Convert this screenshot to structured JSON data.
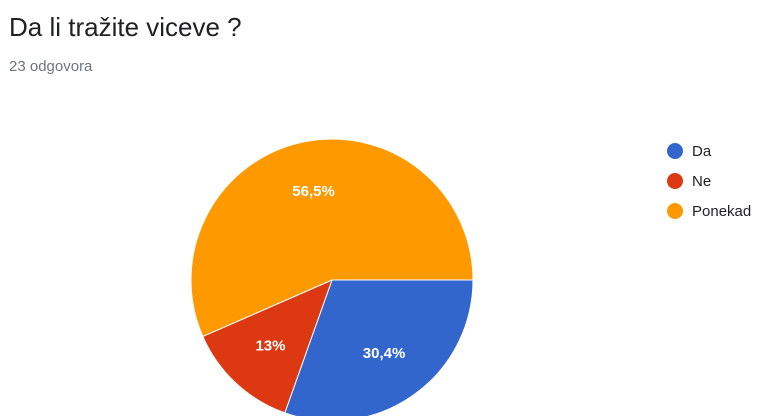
{
  "question": {
    "title": "Da li tražite viceve ?",
    "response_count": "23 odgovora"
  },
  "chart_data": {
    "type": "pie",
    "title": "Da li tražite viceve ?",
    "categories": [
      "Da",
      "Ne",
      "Ponekad"
    ],
    "values": [
      30.4,
      13,
      56.5
    ],
    "value_labels": [
      "30,4%",
      "13%",
      "56,5%"
    ],
    "colors": [
      "#3366cc",
      "#dc3912",
      "#ff9900"
    ],
    "start": "3 o'clock, clockwise",
    "legend_position": "right"
  },
  "legend": {
    "items": [
      {
        "label": "Da",
        "color": "#3366cc"
      },
      {
        "label": "Ne",
        "color": "#dc3912"
      },
      {
        "label": "Ponekad",
        "color": "#ff9900"
      }
    ]
  }
}
